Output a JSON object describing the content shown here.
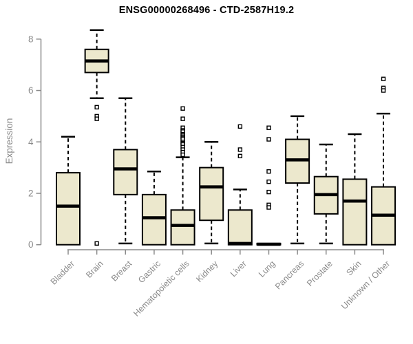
{
  "chart_data": {
    "type": "boxplot",
    "title": "ENSG00000268496 - CTD-2587H19.2",
    "ylabel": "Expression",
    "xlabel": "",
    "yticks": [
      0,
      2,
      4,
      6,
      8
    ],
    "ylim": [
      0,
      8.4
    ],
    "grid": false,
    "legend": "none",
    "categories": [
      "Bladder",
      "Brain",
      "Breast",
      "Gastric",
      "Hematopoietic cells",
      "Kidney",
      "Liver",
      "Lung",
      "Pancreas",
      "Prostate",
      "Skin",
      "Unknown / Other"
    ],
    "series": [
      {
        "name": "Bladder",
        "low": 0,
        "q1": 0,
        "median": 1.5,
        "q3": 2.8,
        "high": 4.2,
        "outliers": []
      },
      {
        "name": "Brain",
        "low": 5.7,
        "q1": 6.7,
        "median": 7.15,
        "q3": 7.6,
        "high": 8.35,
        "outliers": [
          5.35,
          5.0,
          4.9,
          0.05
        ]
      },
      {
        "name": "Breast",
        "low": 0.05,
        "q1": 1.95,
        "median": 2.95,
        "q3": 3.7,
        "high": 5.7,
        "outliers": []
      },
      {
        "name": "Gastric",
        "low": 0,
        "q1": 0,
        "median": 1.05,
        "q3": 1.95,
        "high": 2.85,
        "outliers": []
      },
      {
        "name": "Hematopoietic cells",
        "low": 0,
        "q1": 0,
        "median": 0.75,
        "q3": 1.35,
        "high": 3.4,
        "outliers": [
          5.3,
          4.9,
          4.55,
          4.45,
          4.4,
          4.3,
          4.25,
          4.2,
          4.15,
          4.1,
          4.0,
          3.95,
          3.9,
          3.8,
          3.7,
          3.6,
          3.5
        ]
      },
      {
        "name": "Kidney",
        "low": 0.05,
        "q1": 0.95,
        "median": 2.25,
        "q3": 3.0,
        "high": 4.0,
        "outliers": []
      },
      {
        "name": "Liver",
        "low": 0,
        "q1": 0,
        "median": 0.05,
        "q3": 1.35,
        "high": 2.15,
        "outliers": [
          4.6,
          3.7,
          3.45
        ]
      },
      {
        "name": "Lung",
        "low": 0,
        "q1": 0,
        "median": 0.02,
        "q3": 0.05,
        "high": 0.05,
        "outliers": [
          4.55,
          4.1,
          2.85,
          2.45,
          2.05,
          1.55,
          1.45
        ]
      },
      {
        "name": "Pancreas",
        "low": 0.05,
        "q1": 2.4,
        "median": 3.3,
        "q3": 4.1,
        "high": 5.0,
        "outliers": []
      },
      {
        "name": "Prostate",
        "low": 0.05,
        "q1": 1.2,
        "median": 1.95,
        "q3": 2.65,
        "high": 3.9,
        "outliers": []
      },
      {
        "name": "Skin",
        "low": 0,
        "q1": 0,
        "median": 1.7,
        "q3": 2.55,
        "high": 4.3,
        "outliers": []
      },
      {
        "name": "Unknown / Other",
        "low": 0,
        "q1": 0,
        "median": 1.15,
        "q3": 2.25,
        "high": 5.1,
        "outliers": [
          6.45,
          6.1,
          6.0
        ]
      }
    ],
    "colors": {
      "box_fill": "#ece8cd",
      "box_border": "#000000",
      "median": "#000000",
      "whisker": "#000000",
      "outlier_stroke": "#000000",
      "outlier_fill": "#ffffff",
      "axis": "#8a8a8a",
      "tick_label": "#8a8a8a",
      "title": "#000000",
      "background": "#ffffff"
    }
  }
}
